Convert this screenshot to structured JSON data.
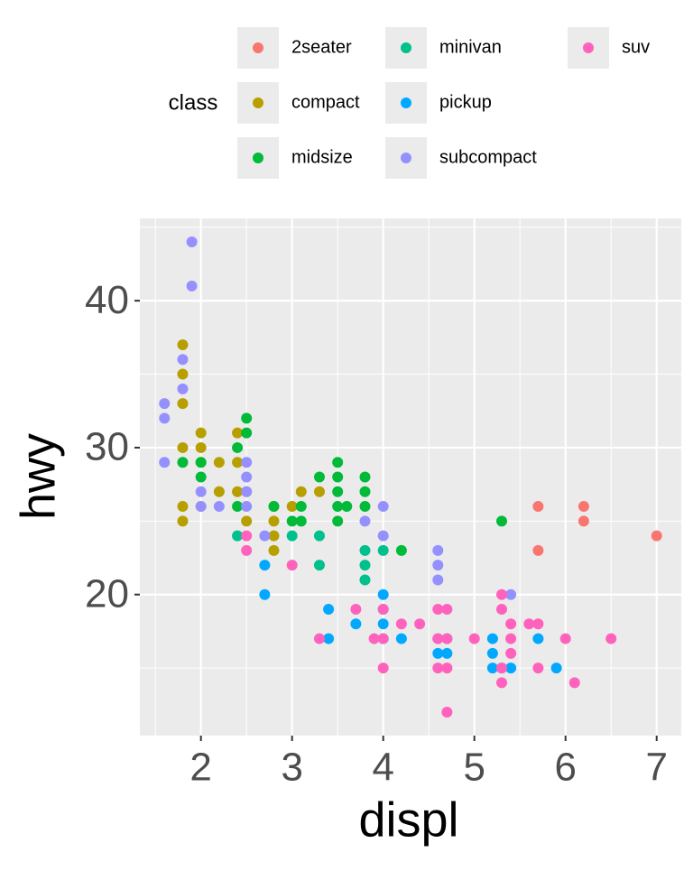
{
  "chart_data": {
    "type": "scatter",
    "x_label": "displ",
    "y_label": "hwy",
    "legend_title": "class",
    "legend": "top",
    "grid": true,
    "xlim": [
      1.33,
      7.27
    ],
    "ylim": [
      10.4,
      45.6
    ],
    "xticks": [
      2,
      3,
      4,
      5,
      6,
      7
    ],
    "yticks": [
      20,
      30,
      40
    ],
    "xminor": [
      1.5,
      2.5,
      3.5,
      4.5,
      5.5,
      6.5
    ],
    "yminor": [
      15,
      25,
      35,
      45
    ],
    "series": [
      {
        "name": "2seater",
        "color": "#F8766D",
        "x": [
          5.7,
          5.7,
          6.2,
          6.2,
          7
        ],
        "values": [
          26,
          23,
          26,
          25,
          24
        ]
      },
      {
        "name": "compact",
        "color": "#B79F00",
        "x": [
          1.8,
          1.8,
          1.8,
          1.8,
          1.8,
          1.8,
          2,
          2,
          2,
          2,
          2.2,
          2.2,
          2.4,
          2.4,
          2.4,
          2.5,
          2.5,
          2.8,
          2.8,
          2.8,
          2.8,
          3,
          3.1,
          3.3
        ],
        "values": [
          37,
          35,
          33,
          30,
          26,
          25,
          31,
          30,
          29,
          26,
          29,
          27,
          31,
          29,
          27,
          27,
          25,
          26,
          25,
          24,
          23,
          26,
          27,
          27
        ]
      },
      {
        "name": "midsize",
        "color": "#00BA38",
        "x": [
          1.8,
          2,
          2,
          2.4,
          2.4,
          2.5,
          2.5,
          2.8,
          3,
          3.1,
          3.1,
          3.3,
          3.5,
          3.5,
          3.5,
          3.5,
          3.5,
          3.6,
          3.8,
          3.8,
          3.8,
          4.2,
          5.3
        ],
        "values": [
          29,
          29,
          28,
          30,
          26,
          32,
          31,
          26,
          25,
          25,
          26,
          28,
          29,
          28,
          27,
          26,
          25,
          26,
          28,
          27,
          26,
          23,
          25
        ]
      },
      {
        "name": "minivan",
        "color": "#00C08B",
        "x": [
          2.4,
          3,
          3.3,
          3.3,
          3.8,
          3.8,
          3.8,
          4
        ],
        "values": [
          24,
          24,
          24,
          22,
          23,
          22,
          21,
          23
        ]
      },
      {
        "name": "pickup",
        "color": "#00A9FF",
        "x": [
          2.7,
          2.7,
          3.4,
          3.4,
          3.7,
          4,
          4,
          4,
          4,
          4.2,
          4.6,
          4.6,
          4.7,
          4.7,
          5.2,
          5.2,
          5.2,
          5.3,
          5.4,
          5.7,
          5.9
        ],
        "values": [
          22,
          20,
          19,
          17,
          18,
          20,
          19,
          18,
          17,
          17,
          17,
          16,
          17,
          16,
          17,
          16,
          15,
          15,
          15,
          17,
          15
        ]
      },
      {
        "name": "subcompact",
        "color": "#9590FF",
        "x": [
          1.6,
          1.6,
          1.6,
          1.8,
          1.8,
          1.9,
          1.9,
          2,
          2,
          2.2,
          2.5,
          2.5,
          2.5,
          2.5,
          2.7,
          3.8,
          4,
          4,
          4.6,
          4.6,
          4.6,
          5.4
        ],
        "values": [
          33,
          32,
          29,
          36,
          34,
          44,
          41,
          27,
          26,
          26,
          29,
          28,
          27,
          26,
          24,
          25,
          26,
          24,
          23,
          22,
          21,
          20
        ]
      },
      {
        "name": "suv",
        "color": "#FF62BC",
        "x": [
          2.5,
          2.5,
          3,
          3.3,
          3.7,
          3.9,
          4,
          4,
          4,
          4.2,
          4.4,
          4.6,
          4.6,
          4.6,
          4.7,
          4.7,
          4.7,
          4.7,
          5,
          5.3,
          5.3,
          5.3,
          5.3,
          5.4,
          5.4,
          5.4,
          5.6,
          5.7,
          5.7,
          6,
          6.1,
          6.5
        ],
        "values": [
          24,
          23,
          22,
          17,
          19,
          17,
          19,
          17,
          15,
          18,
          18,
          19,
          17,
          15,
          19,
          17,
          15,
          12,
          17,
          20,
          19,
          15,
          14,
          18,
          17,
          16,
          18,
          18,
          15,
          17,
          14,
          17
        ]
      }
    ]
  }
}
